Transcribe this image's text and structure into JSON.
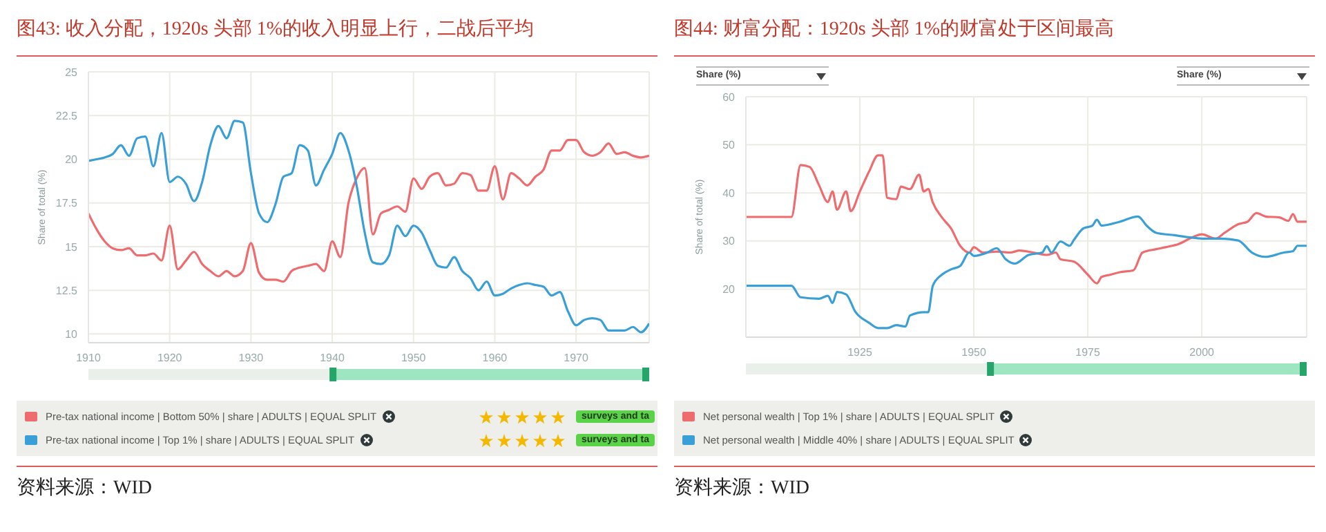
{
  "chart_data": [
    {
      "type": "line",
      "title": "图43:  收入分配，1920s 头部 1%的收入明显上行，二战后平均",
      "ylabel": "Share of total (%)",
      "xlim": [
        1910,
        1979
      ],
      "xticks": [
        1910,
        1920,
        1930,
        1940,
        1950,
        1960,
        1970
      ],
      "ylim": [
        9.5,
        25
      ],
      "yticks": [
        10,
        12.5,
        15,
        17.5,
        20,
        22.5,
        25
      ],
      "grid": true,
      "legend": "bottom",
      "marker": "none",
      "annotations": [
        "surveys and ta",
        "surveys and ta",
        "资料来源：WID"
      ],
      "x": [
        1910,
        1911,
        1912,
        1913,
        1914,
        1915,
        1916,
        1917,
        1918,
        1919,
        1920,
        1921,
        1922,
        1923,
        1924,
        1925,
        1926,
        1927,
        1928,
        1929,
        1930,
        1931,
        1932,
        1933,
        1934,
        1935,
        1936,
        1937,
        1938,
        1939,
        1940,
        1941,
        1942,
        1943,
        1944,
        1945,
        1946,
        1947,
        1948,
        1949,
        1950,
        1951,
        1952,
        1953,
        1954,
        1955,
        1956,
        1957,
        1958,
        1959,
        1960,
        1961,
        1962,
        1963,
        1964,
        1965,
        1966,
        1967,
        1968,
        1969,
        1970,
        1971,
        1972,
        1973,
        1974,
        1975,
        1976,
        1977,
        1978,
        1979
      ],
      "series": [
        {
          "name": "Pre-tax national income | Bottom 50% | share | ADULTS | EQUAL SPLIT",
          "color": "#ee6b6e",
          "values": [
            16.9,
            16.0,
            15.3,
            14.9,
            14.8,
            14.9,
            14.5,
            14.5,
            14.6,
            14.2,
            16.2,
            13.7,
            14.2,
            14.7,
            14.0,
            13.6,
            13.3,
            13.6,
            13.3,
            13.6,
            15.2,
            13.5,
            13.1,
            13.1,
            13.0,
            13.6,
            13.8,
            13.9,
            14.0,
            13.6,
            15.3,
            14.4,
            17.5,
            18.9,
            19.5,
            15.7,
            16.9,
            17.1,
            17.3,
            17.0,
            18.9,
            18.3,
            19.0,
            19.2,
            18.5,
            18.6,
            19.2,
            19.1,
            18.2,
            18.2,
            19.6,
            17.7,
            19.2,
            18.9,
            18.5,
            19.0,
            19.4,
            20.5,
            20.5,
            21.1,
            21.1,
            20.4,
            20.2,
            20.4,
            20.9,
            20.3,
            20.4,
            20.2,
            20.1,
            20.2
          ]
        },
        {
          "name": "Pre-tax national income | Top 1% | share | ADULTS | EQUAL SPLIT",
          "color": "#3a9fd6",
          "values": [
            19.9,
            20.0,
            20.1,
            20.3,
            20.8,
            20.2,
            21.2,
            21.3,
            19.6,
            21.5,
            18.7,
            19.0,
            18.6,
            17.6,
            18.7,
            20.8,
            21.9,
            21.2,
            22.2,
            22.1,
            19.2,
            16.9,
            16.4,
            17.4,
            19.0,
            19.2,
            20.8,
            20.5,
            18.5,
            19.4,
            20.3,
            21.5,
            20.5,
            18.5,
            15.8,
            14.1,
            14.0,
            14.5,
            16.2,
            15.6,
            16.2,
            15.8,
            14.8,
            13.9,
            13.8,
            14.4,
            13.6,
            13.2,
            12.5,
            13.0,
            12.2,
            12.3,
            12.6,
            12.8,
            12.9,
            12.8,
            12.7,
            12.2,
            12.4,
            11.3,
            10.5,
            10.8,
            10.9,
            10.8,
            10.2,
            10.2,
            10.2,
            10.4,
            10.1,
            10.6
          ]
        }
      ]
    },
    {
      "type": "line",
      "title": "图44:  财富分配：1920s 头部 1%的财富处于区间最高",
      "ylabel": "Share of total (%)",
      "xlim": [
        1900,
        2023
      ],
      "xticks": [
        1925,
        1950,
        1975,
        2000
      ],
      "ylim": [
        10,
        60
      ],
      "yticks": [
        20,
        30,
        40,
        50,
        60
      ],
      "grid": true,
      "legend": "bottom",
      "marker": "none",
      "annotations": [
        "Share (%)",
        "Share (%)",
        "资料来源：WID"
      ],
      "series": [
        {
          "name": "Net personal wealth | Top 1% | share | ADULTS | EQUAL SPLIT",
          "color": "#ee6b6e",
          "x": [
            1900,
            1910,
            1912,
            1914,
            1916,
            1918,
            1919,
            1920,
            1922,
            1923,
            1925,
            1927,
            1929,
            1930,
            1931,
            1933,
            1934,
            1936,
            1938,
            1939,
            1940,
            1941,
            1943,
            1945,
            1947,
            1949,
            1950,
            1952,
            1955,
            1958,
            1960,
            1963,
            1966,
            1968,
            1969,
            1972,
            1975,
            1977,
            1978,
            1980,
            1982,
            1985,
            1987,
            1990,
            1992,
            1995,
            1998,
            2000,
            2003,
            2005,
            2008,
            2010,
            2012,
            2014,
            2017,
            2019,
            2020,
            2021,
            2023
          ],
          "values": [
            35,
            35,
            45.8,
            45.4,
            41.7,
            38.1,
            40.3,
            36.5,
            40.3,
            36.2,
            40.3,
            44.4,
            47.8,
            47.8,
            39.0,
            38.7,
            41.3,
            40.8,
            43.8,
            40.3,
            40.8,
            38.0,
            34.9,
            32.6,
            29.0,
            27.6,
            28.7,
            27.6,
            27.8,
            27.6,
            28.0,
            27.6,
            27.1,
            27.6,
            26.2,
            25.7,
            23.0,
            21.2,
            22.5,
            23.0,
            23.5,
            23.9,
            27.6,
            28.3,
            28.7,
            29.4,
            30.8,
            31.4,
            30.5,
            31.7,
            33.5,
            34.0,
            35.8,
            35.1,
            34.9,
            34.2,
            35.6,
            34.0,
            34.0
          ]
        },
        {
          "name": "Net personal wealth | Middle 40% | share | ADULTS | EQUAL SPLIT",
          "color": "#3a9fd6",
          "x": [
            1900,
            1910,
            1912,
            1916,
            1918,
            1919,
            1920,
            1922,
            1924,
            1927,
            1929,
            1931,
            1933,
            1935,
            1936,
            1939,
            1940,
            1941,
            1943,
            1945,
            1947,
            1949,
            1950,
            1953,
            1955,
            1957,
            1959,
            1962,
            1965,
            1966,
            1967,
            1969,
            1971,
            1972,
            1974,
            1976,
            1977,
            1978,
            1982,
            1986,
            1988,
            1990,
            1994,
            1997,
            2000,
            2004,
            2008,
            2011,
            2014,
            2018,
            2020,
            2021,
            2023
          ],
          "values": [
            20.7,
            20.7,
            18.3,
            18.0,
            18.6,
            17.1,
            19.4,
            18.9,
            15.3,
            13.0,
            11.9,
            11.9,
            12.5,
            12.2,
            14.5,
            15.2,
            15.2,
            20.7,
            23.0,
            24.1,
            24.8,
            27.6,
            26.9,
            27.6,
            28.5,
            26.2,
            25.3,
            27.1,
            27.6,
            28.9,
            27.6,
            29.9,
            29.0,
            30.3,
            32.6,
            33.2,
            34.4,
            33.2,
            34.0,
            35.1,
            33.1,
            31.7,
            31.2,
            30.8,
            30.5,
            30.5,
            30.1,
            27.6,
            26.7,
            27.6,
            27.9,
            29.0,
            29.0
          ]
        }
      ]
    }
  ]
}
